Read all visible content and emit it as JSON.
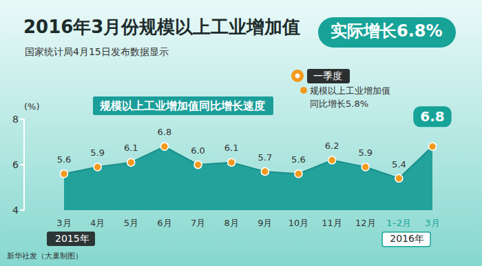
{
  "chart_data": {
    "type": "area",
    "title": "2016年3月份规模以上工业增加值",
    "headline": "实际增长6.8%",
    "subtitle": "国家统计局4月15日发布数据显示",
    "series_label": "规模以上工业增加值同比增长速度",
    "y_label": "(%)",
    "categories": [
      "3月",
      "4月",
      "5月",
      "6月",
      "7月",
      "8月",
      "9月",
      "10月",
      "11月",
      "12月",
      "1–2月",
      "3月"
    ],
    "x_groups": [
      {
        "label": "2015年",
        "categories": [
          "3月",
          "4月",
          "5月",
          "6月",
          "7月",
          "8月",
          "9月",
          "10月",
          "11月",
          "12月"
        ]
      },
      {
        "label": "2016年",
        "categories": [
          "1–2月",
          "3月"
        ]
      }
    ],
    "values": [
      5.6,
      5.9,
      6.1,
      6.8,
      6.0,
      6.1,
      5.7,
      5.6,
      6.2,
      5.9,
      5.4,
      6.8
    ],
    "value_labels": [
      "5.6",
      "5.9",
      "6.1",
      "6.8",
      "6.0",
      "6.1",
      "5.7",
      "5.6",
      "6.2",
      "5.9",
      "5.4",
      "6.8"
    ],
    "color": "#23a19b",
    "ylim": [
      4,
      8
    ],
    "yticks": [
      4,
      6,
      8
    ],
    "grid": false,
    "data_labels": true,
    "marker": "circle",
    "annotation": {
      "title": "一季度",
      "lines": [
        "规模以上工业增加值",
        "同比增长5.8%"
      ]
    },
    "source": "新华社发（大巢制图）"
  }
}
